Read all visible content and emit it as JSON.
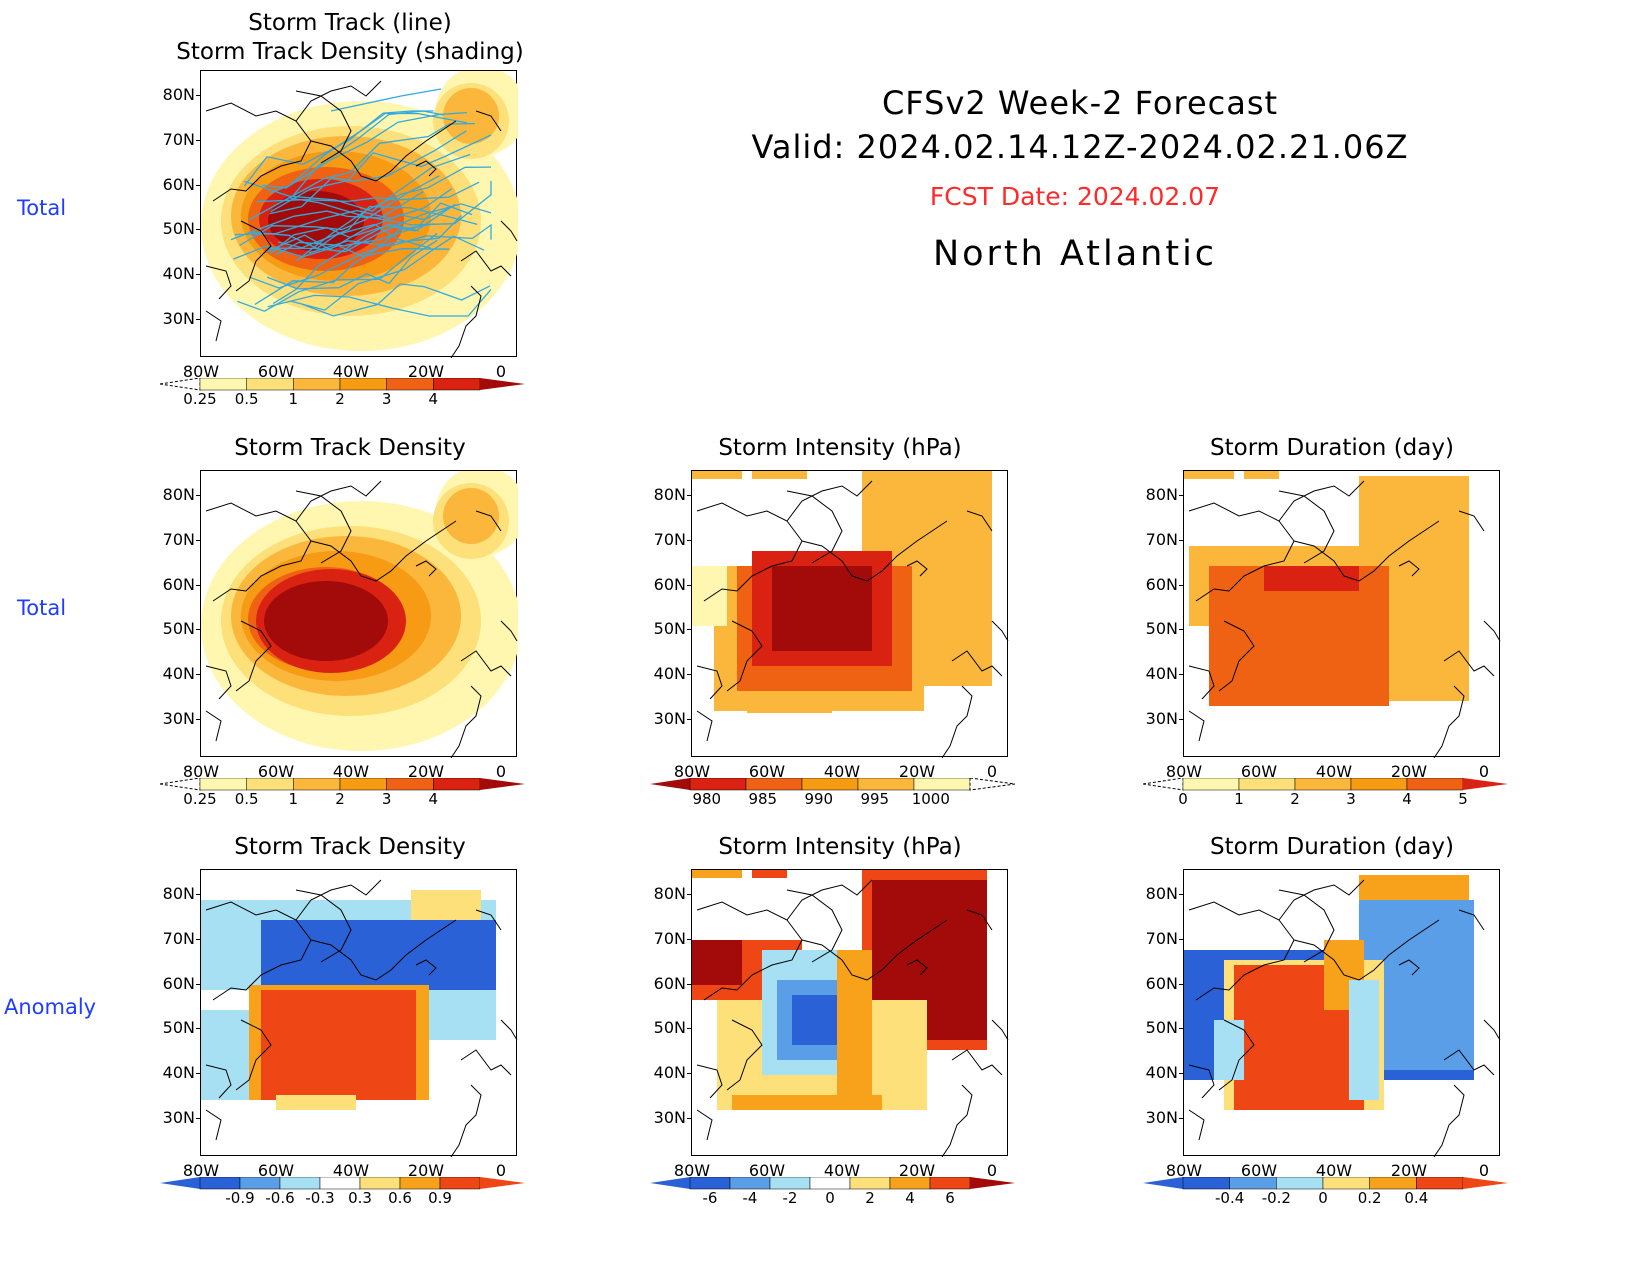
{
  "header": {
    "title_line1": "CFSv2 Week-2 Forecast",
    "title_line2": "Valid: 2024.02.14.12Z-2024.02.21.06Z",
    "fcst_date": "FCST Date: 2024.02.07",
    "region": "North Atlantic"
  },
  "row_labels": [
    "Total",
    "Total",
    "Anomaly"
  ],
  "axes": {
    "lat_ticks": [
      "80N",
      "70N",
      "60N",
      "50N",
      "40N",
      "30N"
    ],
    "lon_ticks": [
      "80W",
      "60W",
      "40W",
      "20W",
      "0"
    ]
  },
  "colors": {
    "row_label": "#1f3cff",
    "fcst_date": "#ff2a2a",
    "track_line": "#33aadd",
    "warm": [
      "#fff7b0",
      "#fde07a",
      "#fbb73b",
      "#f79a14",
      "#ef6214",
      "#d92212",
      "#a30b0b"
    ],
    "cool": [
      "#2a61d6",
      "#4f95ea",
      "#a6e0f2"
    ],
    "anom": [
      "#2a61d6",
      "#5a9ee8",
      "#a6e0f2",
      "#ffffff",
      "#fde07a",
      "#f7a21a",
      "#ee4614"
    ]
  },
  "chart_data": [
    {
      "type": "heatmap",
      "id": "track_total",
      "title_line1": "Storm Track (line)",
      "title_line2": "Storm Track Density (shading)",
      "overlay": "storm track lines",
      "colorbar": {
        "labels": [
          "0.25",
          "0.5",
          "1",
          "2",
          "3",
          "4"
        ],
        "extend": "both"
      },
      "xlim": [
        "80W",
        "0"
      ],
      "ylim": [
        "25N",
        "85N"
      ]
    },
    {
      "type": "heatmap",
      "id": "density_total",
      "title": "Storm Track Density",
      "colorbar": {
        "labels": [
          "0.25",
          "0.5",
          "1",
          "2",
          "3",
          "4"
        ],
        "extend": "both"
      },
      "xlim": [
        "80W",
        "0"
      ],
      "ylim": [
        "25N",
        "85N"
      ]
    },
    {
      "type": "heatmap",
      "id": "intensity_total",
      "title": "Storm Intensity (hPa)",
      "colorbar": {
        "labels": [
          "980",
          "985",
          "990",
          "995",
          "1000"
        ],
        "extend": "both"
      },
      "xlim": [
        "80W",
        "0"
      ],
      "ylim": [
        "25N",
        "85N"
      ]
    },
    {
      "type": "heatmap",
      "id": "duration_total",
      "title": "Storm Duration (day)",
      "colorbar": {
        "labels": [
          "0",
          "1",
          "2",
          "3",
          "4",
          "5"
        ],
        "extend": "both"
      },
      "xlim": [
        "80W",
        "0"
      ],
      "ylim": [
        "25N",
        "85N"
      ]
    },
    {
      "type": "heatmap",
      "id": "density_anom",
      "title": "Storm Track Density",
      "colorbar": {
        "labels": [
          "-0.9",
          "-0.6",
          "-0.3",
          "0.3",
          "0.6",
          "0.9"
        ],
        "extend": "both"
      },
      "xlim": [
        "80W",
        "0"
      ],
      "ylim": [
        "25N",
        "85N"
      ]
    },
    {
      "type": "heatmap",
      "id": "intensity_anom",
      "title": "Storm Intensity (hPa)",
      "colorbar": {
        "labels": [
          "-6",
          "-4",
          "-2",
          "0",
          "2",
          "4",
          "6"
        ],
        "extend": "both"
      },
      "xlim": [
        "80W",
        "0"
      ],
      "ylim": [
        "25N",
        "85N"
      ]
    },
    {
      "type": "heatmap",
      "id": "duration_anom",
      "title": "Storm Duration (day)",
      "colorbar": {
        "labels": [
          "-0.4",
          "-0.2",
          "0",
          "0.2",
          "0.4"
        ],
        "extend": "both"
      },
      "xlim": [
        "80W",
        "0"
      ],
      "ylim": [
        "25N",
        "85N"
      ]
    }
  ]
}
